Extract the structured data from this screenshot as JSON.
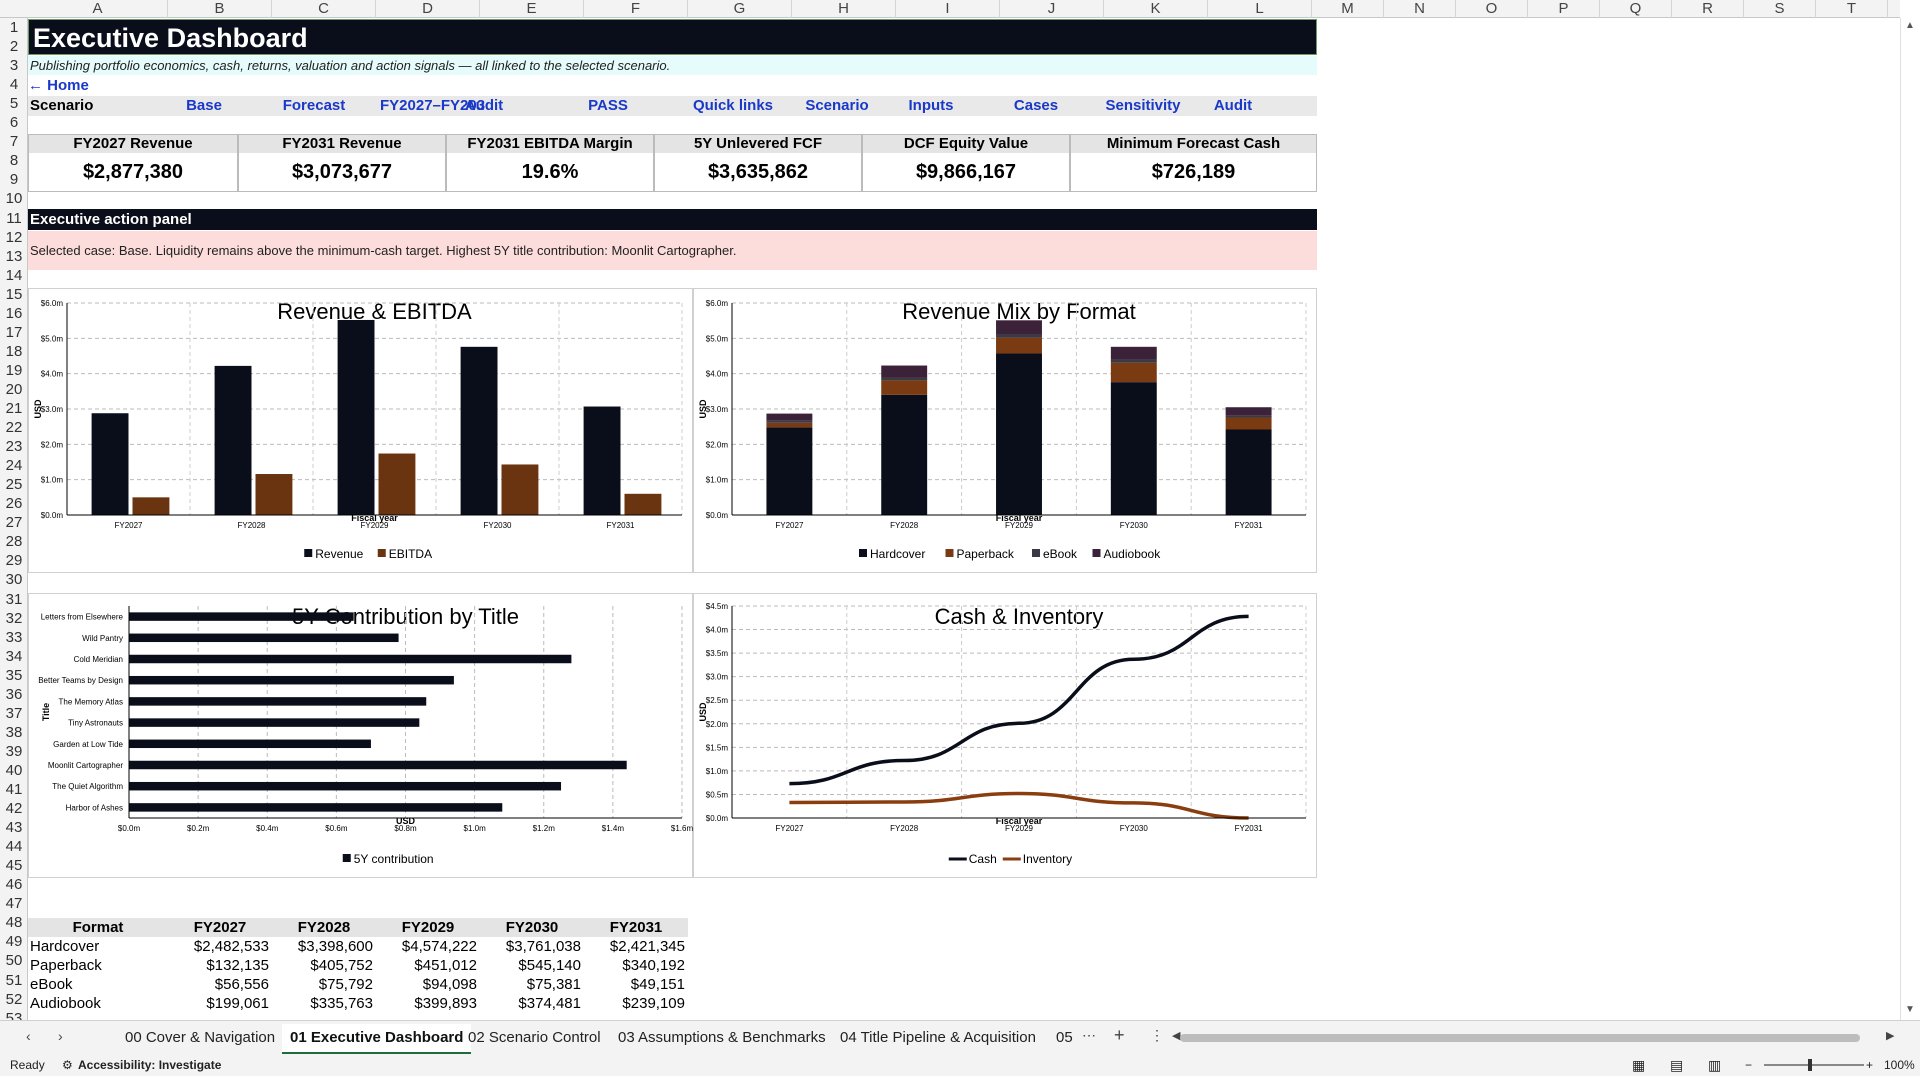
{
  "columns": [
    "A",
    "B",
    "C",
    "D",
    "E",
    "F",
    "G",
    "H",
    "I",
    "J",
    "K",
    "L",
    "M",
    "N",
    "O",
    "P",
    "Q",
    "R",
    "S",
    "T"
  ],
  "rows": [
    "1",
    "2",
    "3",
    "4",
    "5",
    "6",
    "7",
    "8",
    "9",
    "10",
    "11",
    "12",
    "13",
    "14",
    "15",
    "16",
    "17",
    "18",
    "19",
    "20",
    "21",
    "22",
    "23",
    "24",
    "25",
    "26",
    "27",
    "28",
    "29",
    "30",
    "31",
    "32",
    "33",
    "34",
    "35",
    "36",
    "37",
    "38",
    "39",
    "40",
    "41",
    "42",
    "43",
    "44",
    "45",
    "46",
    "47",
    "48",
    "49",
    "50",
    "51",
    "52",
    "53"
  ],
  "header": {
    "title": "Executive Dashboard",
    "subtitle": "Publishing portfolio economics, cash, returns, valuation and action signals — all linked to the selected scenario.",
    "home_link": "← Home"
  },
  "nav": {
    "scenario_label": "Scenario",
    "links": [
      "Base",
      "Forecast",
      "FY2027–FY203",
      "Audit",
      "PASS",
      "Quick links",
      "Scenario",
      "Inputs",
      "Cases",
      "Sensitivity",
      "Audit"
    ]
  },
  "kpis": [
    {
      "label": "FY2027 Revenue",
      "value": "$2,877,380"
    },
    {
      "label": "FY2031 Revenue",
      "value": "$3,073,677"
    },
    {
      "label": "FY2031 EBITDA Margin",
      "value": "19.6%"
    },
    {
      "label": "5Y Unlevered FCF",
      "value": "$3,635,862"
    },
    {
      "label": "DCF Equity Value",
      "value": "$9,866,167"
    },
    {
      "label": "Minimum Forecast Cash",
      "value": "$726,189"
    }
  ],
  "action": {
    "header": "Executive action panel",
    "body": "Selected case: Base. Liquidity remains above the minimum-cash target. Highest 5Y title contribution: Moonlit Cartographer."
  },
  "chart_data": [
    {
      "type": "bar",
      "title": "Revenue & EBITDA",
      "xlabel": "Fiscal year",
      "ylabel": "USD",
      "categories": [
        "FY2027",
        "FY2028",
        "FY2029",
        "FY2030",
        "FY2031"
      ],
      "series": [
        {
          "name": "Revenue",
          "values": [
            2.88,
            4.22,
            5.52,
            4.76,
            3.07
          ],
          "color": "#0a0e1a"
        },
        {
          "name": "EBITDA",
          "values": [
            0.5,
            1.16,
            1.74,
            1.43,
            0.6
          ],
          "color": "#6b3410"
        }
      ],
      "ylim": [
        0,
        6
      ],
      "ticks": [
        "$0.0m",
        "$1.0m",
        "$2.0m",
        "$3.0m",
        "$4.0m",
        "$5.0m",
        "$6.0m"
      ],
      "legend": "bottom"
    },
    {
      "type": "bar",
      "stacked": true,
      "title": "Revenue Mix by Format",
      "xlabel": "Fiscal year",
      "ylabel": "USD",
      "categories": [
        "FY2027",
        "FY2028",
        "FY2029",
        "FY2030",
        "FY2031"
      ],
      "series": [
        {
          "name": "Hardcover",
          "values": [
            2.48,
            3.4,
            4.57,
            3.76,
            2.42
          ],
          "color": "#0a0e1a"
        },
        {
          "name": "Paperback",
          "values": [
            0.13,
            0.41,
            0.45,
            0.55,
            0.34
          ],
          "color": "#7a3a12"
        },
        {
          "name": "eBook",
          "values": [
            0.06,
            0.08,
            0.09,
            0.08,
            0.05
          ],
          "color": "#3a3a44"
        },
        {
          "name": "Audiobook",
          "values": [
            0.2,
            0.34,
            0.4,
            0.37,
            0.24
          ],
          "color": "#3b2238"
        }
      ],
      "ylim": [
        0,
        6
      ],
      "ticks": [
        "$0.0m",
        "$1.0m",
        "$2.0m",
        "$3.0m",
        "$4.0m",
        "$5.0m",
        "$6.0m"
      ],
      "legend": "bottom"
    },
    {
      "type": "bar",
      "orientation": "horizontal",
      "title": "5Y Contribution by Title",
      "xlabel": "USD",
      "ylabel": "Title",
      "categories": [
        "Letters from Elsewhere",
        "Wild Pantry",
        "Cold Meridian",
        "Better Teams by Design",
        "The Memory Atlas",
        "Tiny Astronauts",
        "Garden at Low Tide",
        "Moonlit Cartographer",
        "The Quiet Algorithm",
        "Harbor of Ashes"
      ],
      "series": [
        {
          "name": "5Y contribution",
          "values": [
            0.65,
            0.78,
            1.28,
            0.94,
            0.86,
            0.84,
            0.7,
            1.44,
            1.25,
            1.08
          ],
          "color": "#0a0e1a"
        }
      ],
      "xlim": [
        0,
        1.6
      ],
      "ticks": [
        "$0.0m",
        "$0.2m",
        "$0.4m",
        "$0.6m",
        "$0.8m",
        "$1.0m",
        "$1.2m",
        "$1.4m",
        "$1.6m"
      ],
      "legend": "bottom"
    },
    {
      "type": "line",
      "title": "Cash & Inventory",
      "xlabel": "Fiscal year",
      "ylabel": "USD",
      "categories": [
        "FY2027",
        "FY2028",
        "FY2029",
        "FY2030",
        "FY2031"
      ],
      "series": [
        {
          "name": "Cash",
          "values": [
            0.73,
            1.22,
            2.01,
            3.37,
            4.28
          ],
          "color": "#0a0e1a"
        },
        {
          "name": "Inventory",
          "values": [
            0.33,
            0.34,
            0.52,
            0.32,
            0.0
          ],
          "color": "#8a3e10"
        }
      ],
      "ylim": [
        0,
        4.5
      ],
      "ticks": [
        "$0.0m",
        "$0.5m",
        "$1.0m",
        "$1.5m",
        "$2.0m",
        "$2.5m",
        "$3.0m",
        "$3.5m",
        "$4.0m",
        "$4.5m"
      ],
      "legend": "bottom"
    }
  ],
  "format_table": {
    "headers": [
      "Format",
      "FY2027",
      "FY2028",
      "FY2029",
      "FY2030",
      "FY2031"
    ],
    "rows": [
      [
        "Hardcover",
        "$2,482,533",
        "$3,398,600",
        "$4,574,222",
        "$3,761,038",
        "$2,421,345"
      ],
      [
        "Paperback",
        "$132,135",
        "$405,752",
        "$451,012",
        "$545,140",
        "$340,192"
      ],
      [
        "eBook",
        "$56,556",
        "$75,792",
        "$94,098",
        "$75,381",
        "$49,151"
      ],
      [
        "Audiobook",
        "$199,061",
        "$335,763",
        "$399,893",
        "$374,481",
        "$239,109"
      ]
    ]
  },
  "tabs": [
    "00 Cover & Navigation",
    "01 Executive Dashboard",
    "02 Scenario Control",
    "03 Assumptions & Benchmarks",
    "04 Title Pipeline & Acquisition",
    "05"
  ],
  "active_tab": "01 Executive Dashboard",
  "status": {
    "ready": "Ready",
    "accessibility": "Accessibility: Investigate",
    "zoom": "100%"
  }
}
